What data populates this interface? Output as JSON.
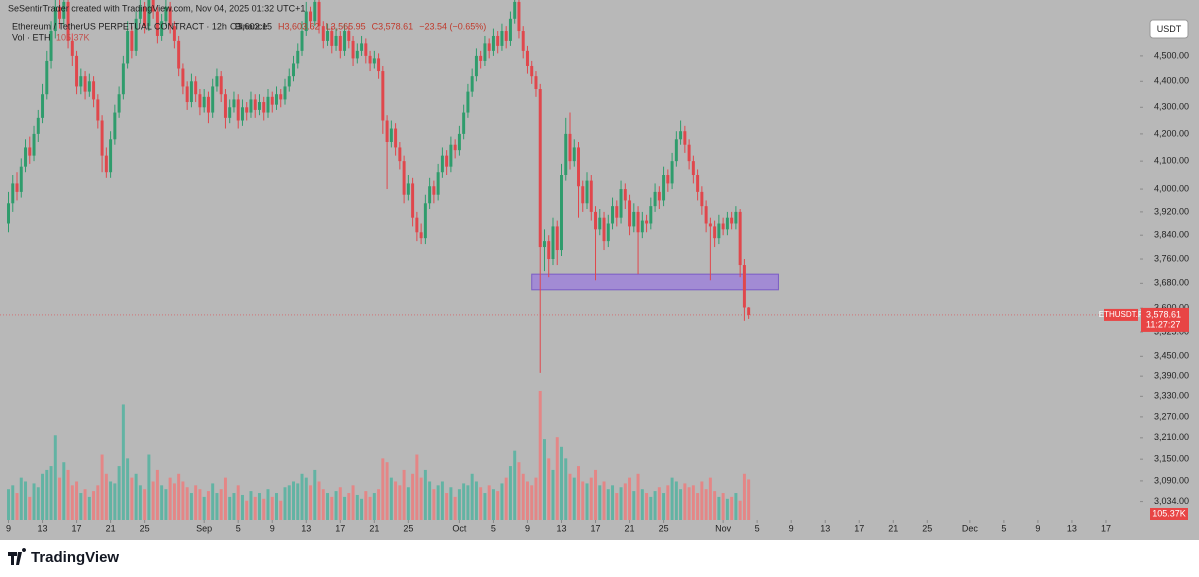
{
  "chart_data": {
    "type": "candlestick",
    "credit": "SeSentirTrader created with TradingView.com, Nov 04, 2025 01:32 UTC+1",
    "symbol": "Ethereum / TetherUS PERPETUAL CONTRACT · 12h · Binance",
    "ohlc_labels": [
      "O3,602.15",
      "H3,603.62",
      "L3,565.95",
      "C3,578.61",
      "−23.54 (−0.65%)"
    ],
    "volume_title": "Vol · ETH",
    "volume_label": "105.37K",
    "currency_button": "USDT",
    "symbol_tag": "ETHUSDT.P",
    "last_price_label": "3,578.61",
    "countdown": "11:27:27",
    "brand": "TradingView",
    "log_scale": true,
    "up_color": "#2f9c6c",
    "down_color": "#e0474c",
    "volume_up_color": "#62b3a3",
    "volume_down_color": "#e48686",
    "ylim": [
      2985,
      4728
    ],
    "yticks": [
      {
        "value": 4500,
        "label": "4,500.00"
      },
      {
        "value": 4400,
        "label": "4,400.00"
      },
      {
        "value": 4300,
        "label": "4,300.00"
      },
      {
        "value": 4200,
        "label": "4,200.00"
      },
      {
        "value": 4100,
        "label": "4,100.00"
      },
      {
        "value": 4000,
        "label": "4,000.00"
      },
      {
        "value": 3920,
        "label": "3,920.00"
      },
      {
        "value": 3840,
        "label": "3,840.00"
      },
      {
        "value": 3760,
        "label": "3,760.00"
      },
      {
        "value": 3680,
        "label": "3,680.00"
      },
      {
        "value": 3600,
        "label": "3,600.00"
      },
      {
        "value": 3525,
        "label": "3,525.00"
      },
      {
        "value": 3450,
        "label": "3,450.00"
      },
      {
        "value": 3390,
        "label": "3,390.00"
      },
      {
        "value": 3330,
        "label": "3,330.00"
      },
      {
        "value": 3270,
        "label": "3,270.00"
      },
      {
        "value": 3210,
        "label": "3,210.00"
      },
      {
        "value": 3150,
        "label": "3,150.00"
      },
      {
        "value": 3090,
        "label": "3,090.00"
      },
      {
        "value": 3034,
        "label": "3,034.00"
      }
    ],
    "xlim": [
      -2,
      266
    ],
    "xticks": [
      {
        "value": 0,
        "label": "9"
      },
      {
        "value": 8,
        "label": "13"
      },
      {
        "value": 16,
        "label": "17"
      },
      {
        "value": 24,
        "label": "21"
      },
      {
        "value": 32,
        "label": "25"
      },
      {
        "value": 46,
        "label": "Sep"
      },
      {
        "value": 54,
        "label": "5"
      },
      {
        "value": 62,
        "label": "9"
      },
      {
        "value": 70,
        "label": "13"
      },
      {
        "value": 78,
        "label": "17"
      },
      {
        "value": 86,
        "label": "21"
      },
      {
        "value": 94,
        "label": "25"
      },
      {
        "value": 106,
        "label": "Oct"
      },
      {
        "value": 114,
        "label": "5"
      },
      {
        "value": 122,
        "label": "9"
      },
      {
        "value": 130,
        "label": "13"
      },
      {
        "value": 138,
        "label": "17"
      },
      {
        "value": 146,
        "label": "21"
      },
      {
        "value": 154,
        "label": "25"
      },
      {
        "value": 168,
        "label": "Nov"
      },
      {
        "value": 176,
        "label": "5"
      },
      {
        "value": 184,
        "label": "9"
      },
      {
        "value": 192,
        "label": "13"
      },
      {
        "value": 200,
        "label": "17"
      },
      {
        "value": 208,
        "label": "21"
      },
      {
        "value": 216,
        "label": "25"
      },
      {
        "value": 226,
        "label": "Dec"
      },
      {
        "value": 234,
        "label": "5"
      },
      {
        "value": 242,
        "label": "9"
      },
      {
        "value": 250,
        "label": "13"
      },
      {
        "value": 258,
        "label": "17"
      }
    ],
    "zone": {
      "x": [
        123,
        181
      ],
      "y": [
        3659,
        3710
      ],
      "color": "#9d82d8"
    },
    "volume_ylim": [
      0,
      1350
    ],
    "candles": [
      [
        3880,
        3990,
        3850,
        3950
      ],
      [
        3950,
        4050,
        3920,
        4020
      ],
      [
        4020,
        4060,
        3960,
        3990
      ],
      [
        3990,
        4110,
        3970,
        4080
      ],
      [
        4080,
        4180,
        4060,
        4150
      ],
      [
        4150,
        4190,
        4090,
        4120
      ],
      [
        4120,
        4230,
        4100,
        4200
      ],
      [
        4200,
        4290,
        4170,
        4260
      ],
      [
        4260,
        4390,
        4240,
        4350
      ],
      [
        4350,
        4520,
        4330,
        4480
      ],
      [
        4480,
        4640,
        4450,
        4600
      ],
      [
        4600,
        4760,
        4570,
        4700
      ],
      [
        4700,
        4740,
        4610,
        4650
      ],
      [
        4650,
        4770,
        4620,
        4720
      ],
      [
        4720,
        4740,
        4530,
        4560
      ],
      [
        4560,
        4590,
        4460,
        4500
      ],
      [
        4500,
        4520,
        4350,
        4380
      ],
      [
        4380,
        4450,
        4350,
        4420
      ],
      [
        4420,
        4440,
        4330,
        4360
      ],
      [
        4360,
        4430,
        4340,
        4400
      ],
      [
        4400,
        4420,
        4300,
        4330
      ],
      [
        4330,
        4350,
        4220,
        4250
      ],
      [
        4250,
        4270,
        4060,
        4120
      ],
      [
        4120,
        4150,
        4040,
        4060
      ],
      [
        4060,
        4210,
        4040,
        4180
      ],
      [
        4180,
        4310,
        4160,
        4280
      ],
      [
        4280,
        4380,
        4260,
        4350
      ],
      [
        4350,
        4500,
        4330,
        4470
      ],
      [
        4470,
        4640,
        4450,
        4600
      ],
      [
        4600,
        4620,
        4490,
        4520
      ],
      [
        4520,
        4680,
        4500,
        4650
      ],
      [
        4650,
        4740,
        4630,
        4700
      ],
      [
        4700,
        4720,
        4590,
        4620
      ],
      [
        4620,
        4790,
        4600,
        4740
      ],
      [
        4740,
        4770,
        4650,
        4680
      ],
      [
        4680,
        4700,
        4550,
        4580
      ],
      [
        4580,
        4670,
        4560,
        4640
      ],
      [
        4640,
        4740,
        4620,
        4700
      ],
      [
        4700,
        4720,
        4590,
        4620
      ],
      [
        4620,
        4640,
        4530,
        4560
      ],
      [
        4560,
        4580,
        4420,
        4450
      ],
      [
        4450,
        4470,
        4350,
        4380
      ],
      [
        4380,
        4400,
        4290,
        4320
      ],
      [
        4320,
        4430,
        4300,
        4400
      ],
      [
        4400,
        4420,
        4320,
        4350
      ],
      [
        4350,
        4370,
        4270,
        4300
      ],
      [
        4300,
        4370,
        4280,
        4340
      ],
      [
        4340,
        4360,
        4240,
        4280
      ],
      [
        4280,
        4410,
        4260,
        4380
      ],
      [
        4380,
        4450,
        4360,
        4420
      ],
      [
        4420,
        4440,
        4320,
        4350
      ],
      [
        4350,
        4370,
        4220,
        4260
      ],
      [
        4260,
        4330,
        4240,
        4300
      ],
      [
        4300,
        4360,
        4280,
        4330
      ],
      [
        4330,
        4350,
        4220,
        4250
      ],
      [
        4250,
        4330,
        4230,
        4300
      ],
      [
        4300,
        4320,
        4250,
        4280
      ],
      [
        4280,
        4360,
        4260,
        4330
      ],
      [
        4330,
        4350,
        4260,
        4290
      ],
      [
        4290,
        4350,
        4270,
        4320
      ],
      [
        4320,
        4340,
        4250,
        4280
      ],
      [
        4280,
        4370,
        4260,
        4340
      ],
      [
        4340,
        4360,
        4280,
        4310
      ],
      [
        4310,
        4380,
        4290,
        4350
      ],
      [
        4350,
        4370,
        4300,
        4330
      ],
      [
        4330,
        4410,
        4310,
        4380
      ],
      [
        4380,
        4450,
        4360,
        4420
      ],
      [
        4420,
        4500,
        4400,
        4470
      ],
      [
        4470,
        4550,
        4450,
        4520
      ],
      [
        4520,
        4640,
        4500,
        4600
      ],
      [
        4600,
        4720,
        4580,
        4680
      ],
      [
        4680,
        4700,
        4610,
        4640
      ],
      [
        4640,
        4760,
        4620,
        4720
      ],
      [
        4720,
        4740,
        4590,
        4620
      ],
      [
        4620,
        4640,
        4530,
        4560
      ],
      [
        4560,
        4630,
        4540,
        4600
      ],
      [
        4600,
        4620,
        4510,
        4540
      ],
      [
        4540,
        4610,
        4520,
        4580
      ],
      [
        4580,
        4600,
        4490,
        4520
      ],
      [
        4520,
        4630,
        4500,
        4600
      ],
      [
        4600,
        4620,
        4530,
        4560
      ],
      [
        4560,
        4580,
        4460,
        4490
      ],
      [
        4490,
        4550,
        4470,
        4520
      ],
      [
        4520,
        4580,
        4500,
        4550
      ],
      [
        4550,
        4570,
        4470,
        4500
      ],
      [
        4500,
        4520,
        4440,
        4470
      ],
      [
        4470,
        4520,
        4450,
        4490
      ],
      [
        4490,
        4510,
        4410,
        4440
      ],
      [
        4440,
        4460,
        4200,
        4250
      ],
      [
        4250,
        4270,
        4000,
        4170
      ],
      [
        4170,
        4250,
        4150,
        4220
      ],
      [
        4220,
        4240,
        4120,
        4150
      ],
      [
        4150,
        4170,
        4070,
        4100
      ],
      [
        4100,
        4120,
        3950,
        3980
      ],
      [
        3980,
        4050,
        3960,
        4020
      ],
      [
        4020,
        4040,
        3870,
        3900
      ],
      [
        3900,
        3920,
        3820,
        3850
      ],
      [
        3850,
        3880,
        3810,
        3830
      ],
      [
        3830,
        3980,
        3810,
        3950
      ],
      [
        3950,
        4040,
        3930,
        4010
      ],
      [
        4010,
        4030,
        3950,
        3980
      ],
      [
        3980,
        4090,
        3960,
        4060
      ],
      [
        4060,
        4150,
        4040,
        4120
      ],
      [
        4120,
        4140,
        4050,
        4080
      ],
      [
        4080,
        4190,
        4060,
        4160
      ],
      [
        4160,
        4180,
        4110,
        4140
      ],
      [
        4140,
        4230,
        4120,
        4200
      ],
      [
        4200,
        4310,
        4180,
        4280
      ],
      [
        4280,
        4390,
        4260,
        4360
      ],
      [
        4360,
        4450,
        4340,
        4420
      ],
      [
        4420,
        4530,
        4400,
        4500
      ],
      [
        4500,
        4520,
        4450,
        4480
      ],
      [
        4480,
        4580,
        4460,
        4550
      ],
      [
        4550,
        4570,
        4490,
        4520
      ],
      [
        4520,
        4610,
        4500,
        4580
      ],
      [
        4580,
        4600,
        4510,
        4540
      ],
      [
        4540,
        4630,
        4520,
        4600
      ],
      [
        4600,
        4620,
        4530,
        4560
      ],
      [
        4560,
        4680,
        4540,
        4650
      ],
      [
        4650,
        4790,
        4630,
        4720
      ],
      [
        4720,
        4740,
        4570,
        4600
      ],
      [
        4600,
        4620,
        4490,
        4520
      ],
      [
        4520,
        4540,
        4430,
        4460
      ],
      [
        4460,
        4480,
        4390,
        4420
      ],
      [
        4420,
        4440,
        4340,
        4370
      ],
      [
        4370,
        4390,
        3400,
        3800
      ],
      [
        3800,
        3860,
        3720,
        3820
      ],
      [
        3820,
        3840,
        3700,
        3760
      ],
      [
        3760,
        3900,
        3740,
        3870
      ],
      [
        3870,
        3890,
        3740,
        3790
      ],
      [
        3790,
        4090,
        3770,
        4050
      ],
      [
        4050,
        4260,
        4030,
        4200
      ],
      [
        4200,
        4280,
        4070,
        4100
      ],
      [
        4100,
        4180,
        4080,
        4150
      ],
      [
        4150,
        4170,
        3900,
        4010
      ],
      [
        4010,
        4030,
        3920,
        3950
      ],
      [
        3950,
        4060,
        3930,
        4030
      ],
      [
        4030,
        4050,
        3890,
        3920
      ],
      [
        3920,
        3940,
        3690,
        3860
      ],
      [
        3860,
        3930,
        3840,
        3900
      ],
      [
        3900,
        3920,
        3790,
        3820
      ],
      [
        3820,
        3910,
        3800,
        3880
      ],
      [
        3880,
        3970,
        3860,
        3940
      ],
      [
        3940,
        3960,
        3870,
        3900
      ],
      [
        3900,
        4030,
        3880,
        4000
      ],
      [
        4000,
        4020,
        3930,
        3960
      ],
      [
        3960,
        3980,
        3840,
        3870
      ],
      [
        3870,
        3950,
        3850,
        3920
      ],
      [
        3920,
        3940,
        3710,
        3850
      ],
      [
        3850,
        3920,
        3830,
        3890
      ],
      [
        3890,
        3910,
        3850,
        3880
      ],
      [
        3880,
        3970,
        3860,
        3940
      ],
      [
        3940,
        4020,
        3920,
        3990
      ],
      [
        3990,
        4010,
        3930,
        3960
      ],
      [
        3960,
        4080,
        3940,
        4050
      ],
      [
        4050,
        4070,
        3990,
        4020
      ],
      [
        4020,
        4130,
        4000,
        4100
      ],
      [
        4100,
        4210,
        4080,
        4180
      ],
      [
        4180,
        4250,
        4160,
        4210
      ],
      [
        4210,
        4230,
        4130,
        4160
      ],
      [
        4160,
        4180,
        4070,
        4100
      ],
      [
        4100,
        4120,
        4020,
        4050
      ],
      [
        4050,
        4070,
        3960,
        3990
      ],
      [
        3990,
        4010,
        3910,
        3940
      ],
      [
        3940,
        3960,
        3850,
        3880
      ],
      [
        3880,
        3900,
        3690,
        3870
      ],
      [
        3870,
        3890,
        3800,
        3830
      ],
      [
        3830,
        3910,
        3810,
        3880
      ],
      [
        3880,
        3900,
        3840,
        3860
      ],
      [
        3860,
        3920,
        3840,
        3900
      ],
      [
        3900,
        3920,
        3860,
        3880
      ],
      [
        3880,
        3940,
        3860,
        3920
      ],
      [
        3920,
        3930,
        3700,
        3740
      ],
      [
        3740,
        3760,
        3560,
        3602.15
      ],
      [
        3602.15,
        3603.62,
        3565.95,
        3578.61
      ]
    ],
    "volume": [
      80,
      90,
      70,
      110,
      100,
      60,
      95,
      85,
      120,
      130,
      140,
      220,
      110,
      150,
      130,
      90,
      100,
      70,
      80,
      60,
      75,
      90,
      170,
      120,
      100,
      95,
      140,
      300,
      160,
      110,
      120,
      90,
      80,
      170,
      100,
      130,
      90,
      80,
      110,
      95,
      120,
      100,
      85,
      70,
      90,
      80,
      60,
      75,
      95,
      70,
      80,
      110,
      60,
      70,
      90,
      65,
      50,
      75,
      60,
      70,
      55,
      80,
      60,
      70,
      50,
      85,
      90,
      100,
      95,
      120,
      110,
      90,
      130,
      100,
      80,
      70,
      60,
      75,
      85,
      60,
      70,
      90,
      65,
      55,
      75,
      60,
      70,
      80,
      160,
      150,
      110,
      100,
      90,
      130,
      85,
      120,
      170,
      110,
      130,
      100,
      80,
      90,
      100,
      70,
      85,
      60,
      80,
      95,
      90,
      120,
      100,
      85,
      70,
      90,
      80,
      75,
      95,
      110,
      140,
      180,
      150,
      120,
      100,
      90,
      110,
      335,
      210,
      160,
      130,
      215,
      190,
      160,
      120,
      110,
      140,
      100,
      95,
      110,
      130,
      90,
      100,
      80,
      90,
      70,
      85,
      95,
      110,
      75,
      120,
      80,
      70,
      60,
      75,
      85,
      70,
      90,
      110,
      100,
      80,
      95,
      85,
      90,
      70,
      100,
      80,
      110,
      75,
      60,
      70,
      55,
      60,
      70,
      50,
      120,
      105.37
    ]
  }
}
